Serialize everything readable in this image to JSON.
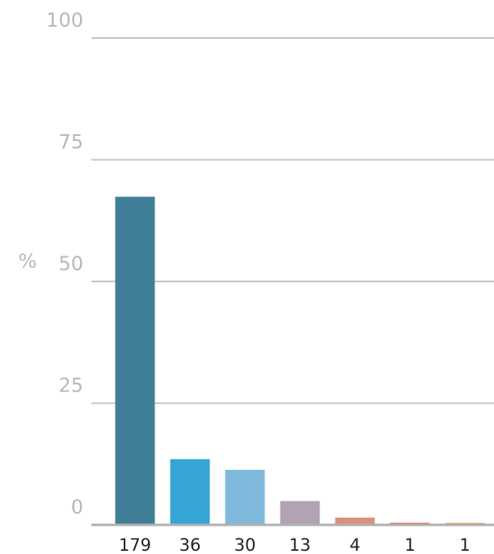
{
  "chart_data": {
    "type": "bar",
    "title": "",
    "xlabel": "",
    "ylabel": "%",
    "ylim": [
      0,
      100
    ],
    "yticks": [
      0,
      25,
      50,
      75,
      100
    ],
    "categories": [
      "179",
      "36",
      "30",
      "13",
      "4",
      "1",
      "1"
    ],
    "values": [
      67.4,
      13.5,
      11.3,
      4.9,
      1.5,
      0.4,
      0.4
    ],
    "colors": [
      "#417f98",
      "#35a5d6",
      "#7fbadc",
      "#b3a3b2",
      "#dc8f7c",
      "#e3613e",
      "#e8a45a"
    ],
    "grid": true,
    "legend": "none"
  }
}
